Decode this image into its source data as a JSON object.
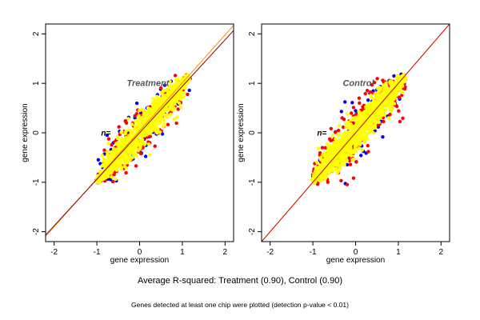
{
  "chart_data": [
    {
      "type": "scatter",
      "title": "Treatment",
      "annotation": "n=",
      "xlabel": "gene expression",
      "ylabel": "gene expression",
      "xlim": [
        -2.2,
        2.2
      ],
      "ylim": [
        -2.2,
        2.2
      ],
      "xticks": [
        "-2",
        "-1",
        "0",
        "1",
        "2"
      ],
      "yticks": [
        "-2",
        "-1",
        "0",
        "1",
        "2"
      ],
      "grid": false,
      "cloud": {
        "x_range": [
          -1.0,
          1.15
        ],
        "spread": 0.2
      },
      "series": [
        {
          "color": "#0000ff",
          "fraction": 0.05
        },
        {
          "color": "#ff0000",
          "fraction": 0.1
        },
        {
          "color": "#ffff00",
          "fraction": 0.85
        }
      ],
      "lines": [
        {
          "color": "#ff8c00",
          "slope": 0.97,
          "intercept": 0.04
        },
        {
          "color": "#8b0000",
          "slope": 0.94,
          "intercept": 0.0
        }
      ]
    },
    {
      "type": "scatter",
      "title": "Control",
      "annotation": "n=",
      "xlabel": "gene expression",
      "ylabel": "gene expression",
      "xlim": [
        -2.2,
        2.2
      ],
      "ylim": [
        -2.2,
        2.2
      ],
      "xticks": [
        "-2",
        "-1",
        "0",
        "1",
        "2"
      ],
      "yticks": [
        "-2",
        "-1",
        "0",
        "1",
        "2"
      ],
      "grid": false,
      "cloud": {
        "x_range": [
          -1.0,
          1.15
        ],
        "spread": 0.22
      },
      "series": [
        {
          "color": "#0000ff",
          "fraction": 0.05
        },
        {
          "color": "#ff0000",
          "fraction": 0.12
        },
        {
          "color": "#ffff00",
          "fraction": 0.83
        }
      ],
      "lines": [
        {
          "color": "#ffd700",
          "slope": 1.0,
          "intercept": 0.0
        },
        {
          "color": "#cc0000",
          "slope": 1.0,
          "intercept": 0.0
        }
      ]
    }
  ],
  "caption": {
    "main": "Average R-squared: Treatment (0.90), Control (0.90)",
    "sub": "Genes detected at least one chip were plotted (detection p-value < 0.01)"
  }
}
